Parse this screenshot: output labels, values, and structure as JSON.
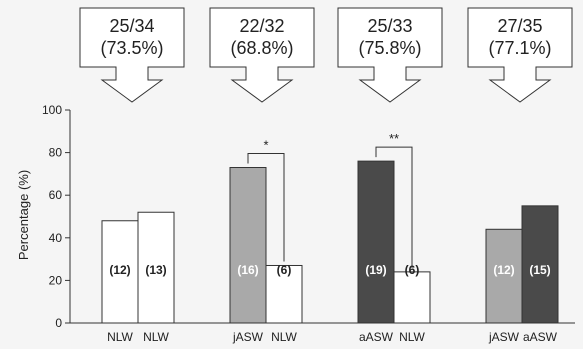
{
  "chart_data": {
    "type": "bar",
    "ylabel": "Percentage (%)",
    "ylim": [
      0,
      100
    ],
    "yticks": [
      "0",
      "20",
      "40",
      "60",
      "80",
      "100"
    ],
    "grid": false,
    "groups": [
      {
        "callout": {
          "line1": "25/34",
          "line2": "(73.5%)"
        },
        "bars": [
          {
            "category": "NLW",
            "value": 48,
            "label": "(12)",
            "color": "#ffffff",
            "label_color": "#222222"
          },
          {
            "category": "NLW",
            "value": 52,
            "label": "(13)",
            "color": "#ffffff",
            "label_color": "#222222"
          }
        ]
      },
      {
        "callout": {
          "line1": "22/32",
          "line2": "(68.8%)"
        },
        "significance": "*",
        "bars": [
          {
            "category": "jASW",
            "value": 73,
            "label": "(16)",
            "color": "#a9a9a9",
            "label_color": "#ffffff"
          },
          {
            "category": "NLW",
            "value": 27,
            "label": "(6)",
            "color": "#ffffff",
            "label_color": "#222222"
          }
        ]
      },
      {
        "callout": {
          "line1": "25/33",
          "line2": "(75.8%)"
        },
        "significance": "**",
        "bars": [
          {
            "category": "aASW",
            "value": 76,
            "label": "(19)",
            "color": "#4a4a4a",
            "label_color": "#ffffff"
          },
          {
            "category": "NLW",
            "value": 24,
            "label": "(6)",
            "color": "#ffffff",
            "label_color": "#222222"
          }
        ]
      },
      {
        "callout": {
          "line1": "27/35",
          "line2": "(77.1%)"
        },
        "bars": [
          {
            "category": "jASW",
            "value": 44,
            "label": "(12)",
            "color": "#a9a9a9",
            "label_color": "#ffffff"
          },
          {
            "category": "aASW",
            "value": 55,
            "label": "(15)",
            "color": "#4a4a4a",
            "label_color": "#ffffff"
          }
        ]
      }
    ]
  }
}
